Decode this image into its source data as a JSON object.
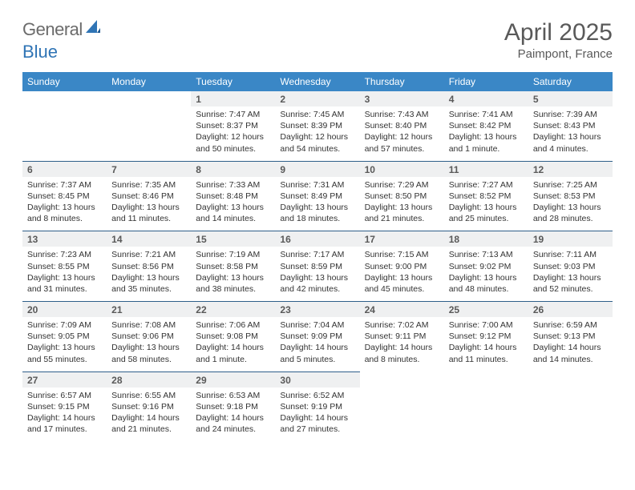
{
  "logo": {
    "text_left": "General",
    "text_right": "Blue",
    "color_left": "#6b6b6b",
    "color_right": "#2f74b5",
    "sail_color": "#2f74b5"
  },
  "title": "April 2025",
  "subtitle": "Paimpont, France",
  "header_bg": "#3a87c6",
  "header_fg": "#ffffff",
  "daynum_bg": "#eff0f1",
  "separator_color": "#2f5f8a",
  "text_color": "#333333",
  "days": [
    "Sunday",
    "Monday",
    "Tuesday",
    "Wednesday",
    "Thursday",
    "Friday",
    "Saturday"
  ],
  "weeks": [
    [
      null,
      null,
      {
        "n": "1",
        "sunrise": "Sunrise: 7:47 AM",
        "sunset": "Sunset: 8:37 PM",
        "daylight": "Daylight: 12 hours and 50 minutes."
      },
      {
        "n": "2",
        "sunrise": "Sunrise: 7:45 AM",
        "sunset": "Sunset: 8:39 PM",
        "daylight": "Daylight: 12 hours and 54 minutes."
      },
      {
        "n": "3",
        "sunrise": "Sunrise: 7:43 AM",
        "sunset": "Sunset: 8:40 PM",
        "daylight": "Daylight: 12 hours and 57 minutes."
      },
      {
        "n": "4",
        "sunrise": "Sunrise: 7:41 AM",
        "sunset": "Sunset: 8:42 PM",
        "daylight": "Daylight: 13 hours and 1 minute."
      },
      {
        "n": "5",
        "sunrise": "Sunrise: 7:39 AM",
        "sunset": "Sunset: 8:43 PM",
        "daylight": "Daylight: 13 hours and 4 minutes."
      }
    ],
    [
      {
        "n": "6",
        "sunrise": "Sunrise: 7:37 AM",
        "sunset": "Sunset: 8:45 PM",
        "daylight": "Daylight: 13 hours and 8 minutes."
      },
      {
        "n": "7",
        "sunrise": "Sunrise: 7:35 AM",
        "sunset": "Sunset: 8:46 PM",
        "daylight": "Daylight: 13 hours and 11 minutes."
      },
      {
        "n": "8",
        "sunrise": "Sunrise: 7:33 AM",
        "sunset": "Sunset: 8:48 PM",
        "daylight": "Daylight: 13 hours and 14 minutes."
      },
      {
        "n": "9",
        "sunrise": "Sunrise: 7:31 AM",
        "sunset": "Sunset: 8:49 PM",
        "daylight": "Daylight: 13 hours and 18 minutes."
      },
      {
        "n": "10",
        "sunrise": "Sunrise: 7:29 AM",
        "sunset": "Sunset: 8:50 PM",
        "daylight": "Daylight: 13 hours and 21 minutes."
      },
      {
        "n": "11",
        "sunrise": "Sunrise: 7:27 AM",
        "sunset": "Sunset: 8:52 PM",
        "daylight": "Daylight: 13 hours and 25 minutes."
      },
      {
        "n": "12",
        "sunrise": "Sunrise: 7:25 AM",
        "sunset": "Sunset: 8:53 PM",
        "daylight": "Daylight: 13 hours and 28 minutes."
      }
    ],
    [
      {
        "n": "13",
        "sunrise": "Sunrise: 7:23 AM",
        "sunset": "Sunset: 8:55 PM",
        "daylight": "Daylight: 13 hours and 31 minutes."
      },
      {
        "n": "14",
        "sunrise": "Sunrise: 7:21 AM",
        "sunset": "Sunset: 8:56 PM",
        "daylight": "Daylight: 13 hours and 35 minutes."
      },
      {
        "n": "15",
        "sunrise": "Sunrise: 7:19 AM",
        "sunset": "Sunset: 8:58 PM",
        "daylight": "Daylight: 13 hours and 38 minutes."
      },
      {
        "n": "16",
        "sunrise": "Sunrise: 7:17 AM",
        "sunset": "Sunset: 8:59 PM",
        "daylight": "Daylight: 13 hours and 42 minutes."
      },
      {
        "n": "17",
        "sunrise": "Sunrise: 7:15 AM",
        "sunset": "Sunset: 9:00 PM",
        "daylight": "Daylight: 13 hours and 45 minutes."
      },
      {
        "n": "18",
        "sunrise": "Sunrise: 7:13 AM",
        "sunset": "Sunset: 9:02 PM",
        "daylight": "Daylight: 13 hours and 48 minutes."
      },
      {
        "n": "19",
        "sunrise": "Sunrise: 7:11 AM",
        "sunset": "Sunset: 9:03 PM",
        "daylight": "Daylight: 13 hours and 52 minutes."
      }
    ],
    [
      {
        "n": "20",
        "sunrise": "Sunrise: 7:09 AM",
        "sunset": "Sunset: 9:05 PM",
        "daylight": "Daylight: 13 hours and 55 minutes."
      },
      {
        "n": "21",
        "sunrise": "Sunrise: 7:08 AM",
        "sunset": "Sunset: 9:06 PM",
        "daylight": "Daylight: 13 hours and 58 minutes."
      },
      {
        "n": "22",
        "sunrise": "Sunrise: 7:06 AM",
        "sunset": "Sunset: 9:08 PM",
        "daylight": "Daylight: 14 hours and 1 minute."
      },
      {
        "n": "23",
        "sunrise": "Sunrise: 7:04 AM",
        "sunset": "Sunset: 9:09 PM",
        "daylight": "Daylight: 14 hours and 5 minutes."
      },
      {
        "n": "24",
        "sunrise": "Sunrise: 7:02 AM",
        "sunset": "Sunset: 9:11 PM",
        "daylight": "Daylight: 14 hours and 8 minutes."
      },
      {
        "n": "25",
        "sunrise": "Sunrise: 7:00 AM",
        "sunset": "Sunset: 9:12 PM",
        "daylight": "Daylight: 14 hours and 11 minutes."
      },
      {
        "n": "26",
        "sunrise": "Sunrise: 6:59 AM",
        "sunset": "Sunset: 9:13 PM",
        "daylight": "Daylight: 14 hours and 14 minutes."
      }
    ],
    [
      {
        "n": "27",
        "sunrise": "Sunrise: 6:57 AM",
        "sunset": "Sunset: 9:15 PM",
        "daylight": "Daylight: 14 hours and 17 minutes."
      },
      {
        "n": "28",
        "sunrise": "Sunrise: 6:55 AM",
        "sunset": "Sunset: 9:16 PM",
        "daylight": "Daylight: 14 hours and 21 minutes."
      },
      {
        "n": "29",
        "sunrise": "Sunrise: 6:53 AM",
        "sunset": "Sunset: 9:18 PM",
        "daylight": "Daylight: 14 hours and 24 minutes."
      },
      {
        "n": "30",
        "sunrise": "Sunrise: 6:52 AM",
        "sunset": "Sunset: 9:19 PM",
        "daylight": "Daylight: 14 hours and 27 minutes."
      },
      null,
      null,
      null
    ]
  ]
}
